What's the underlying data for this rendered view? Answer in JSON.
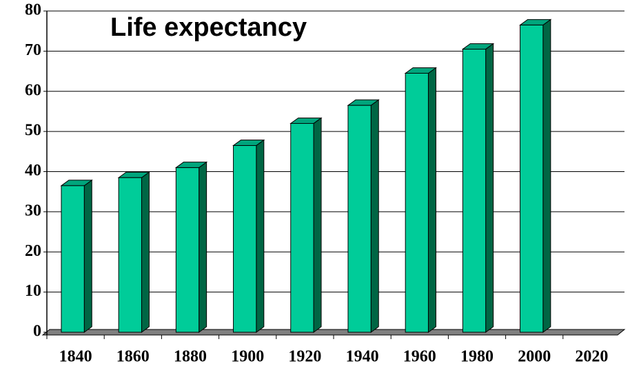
{
  "chart_data": {
    "type": "bar",
    "title": "Life expectancy",
    "categories": [
      "1840",
      "1860",
      "1880",
      "1900",
      "1920",
      "1940",
      "1960",
      "1980",
      "2000",
      "2020"
    ],
    "values": [
      36.5,
      38.5,
      41,
      46.5,
      52,
      56.5,
      64.5,
      70.5,
      76.5,
      null
    ],
    "color": "#00cc99",
    "ylim": [
      0,
      80
    ],
    "yticks": [
      0,
      10,
      20,
      30,
      40,
      50,
      60,
      70,
      80
    ],
    "grid": true
  }
}
